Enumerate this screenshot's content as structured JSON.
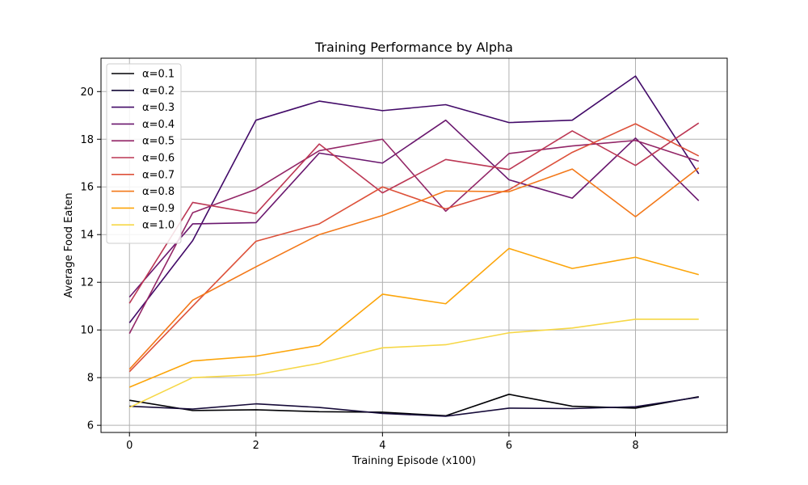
{
  "chart_data": {
    "type": "line",
    "title": "Training Performance by Alpha",
    "xlabel": "Training Episode (x100)",
    "ylabel": "Average Food Eaten",
    "xlim": [
      -0.45,
      9.45
    ],
    "ylim": [
      5.7,
      21.4
    ],
    "xticks": [
      0,
      2,
      4,
      6,
      8
    ],
    "yticks": [
      6,
      8,
      10,
      12,
      14,
      16,
      18,
      20
    ],
    "grid": true,
    "legend_position": "top-left",
    "x": [
      0,
      1,
      2,
      3,
      4,
      5,
      6,
      7,
      8,
      9
    ],
    "series": [
      {
        "name": "α=0.1",
        "color": "#000004",
        "values": [
          7.05,
          6.62,
          6.65,
          6.57,
          6.55,
          6.4,
          7.3,
          6.8,
          6.72,
          7.2
        ]
      },
      {
        "name": "α=0.2",
        "color": "#160b39",
        "values": [
          6.8,
          6.68,
          6.9,
          6.75,
          6.5,
          6.38,
          6.72,
          6.7,
          6.78,
          7.18
        ]
      },
      {
        "name": "α=0.3",
        "color": "#420a68",
        "values": [
          10.3,
          13.75,
          18.8,
          19.6,
          19.2,
          19.45,
          18.7,
          18.8,
          20.65,
          16.55
        ]
      },
      {
        "name": "α=0.4",
        "color": "#6a176e",
        "values": [
          11.38,
          14.45,
          14.5,
          17.42,
          17.0,
          18.8,
          16.3,
          15.53,
          18.05,
          15.42
        ]
      },
      {
        "name": "α=0.5",
        "color": "#932667",
        "values": [
          9.85,
          14.92,
          15.9,
          17.52,
          18.0,
          14.98,
          17.4,
          17.72,
          17.95,
          17.08
        ]
      },
      {
        "name": "α=0.6",
        "color": "#bc3754",
        "values": [
          11.12,
          15.35,
          14.88,
          17.8,
          15.75,
          17.15,
          16.73,
          18.35,
          16.9,
          18.68
        ]
      },
      {
        "name": "α=0.7",
        "color": "#dd513a",
        "values": [
          8.25,
          11.0,
          13.72,
          14.45,
          16.0,
          15.08,
          15.88,
          17.45,
          18.65,
          17.3
        ]
      },
      {
        "name": "α=0.8",
        "color": "#f37819",
        "values": [
          8.35,
          11.25,
          12.65,
          14.0,
          14.8,
          15.83,
          15.8,
          16.75,
          14.75,
          16.8
        ]
      },
      {
        "name": "α=0.9",
        "color": "#fca50a",
        "values": [
          7.6,
          8.7,
          8.9,
          9.35,
          11.5,
          11.1,
          13.42,
          12.58,
          13.05,
          12.32
        ]
      },
      {
        "name": "α=1.0",
        "color": "#f6d746",
        "values": [
          6.75,
          8.0,
          8.12,
          8.6,
          9.25,
          9.38,
          9.88,
          10.08,
          10.45,
          10.45
        ]
      }
    ]
  }
}
